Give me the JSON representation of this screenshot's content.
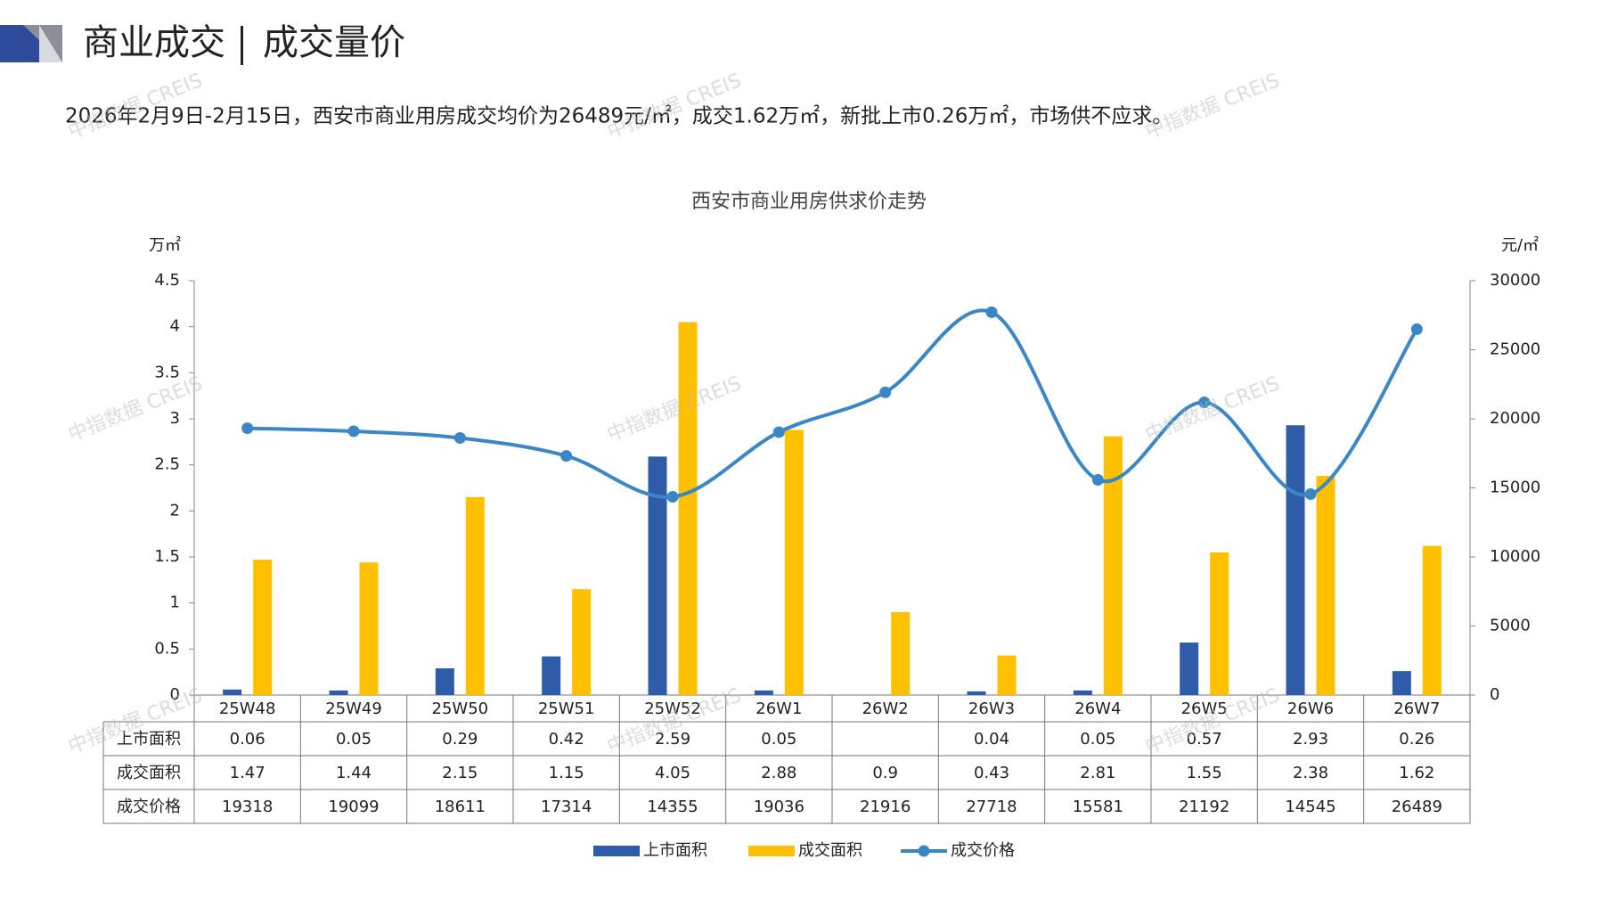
{
  "header": {
    "title": "商业成交",
    "subtitle": "成交量价"
  },
  "summary": "2026年2月9日-2月15日，西安市商业用房成交均价为26489元/㎡，成交1.62万㎡，新批上市0.26万㎡，市场供不应求。",
  "watermark": "中指数据 CREIS",
  "chart_data": {
    "type": "bar-line",
    "title": "西安市商业用房供求价走势",
    "y_label": "万㎡",
    "y2_label": "元/㎡",
    "categories": [
      "25W48",
      "25W49",
      "25W50",
      "25W51",
      "25W52",
      "26W1",
      "26W2",
      "26W3",
      "26W4",
      "26W5",
      "26W6",
      "26W7"
    ],
    "series": [
      {
        "name": "上市面积",
        "type": "bar",
        "color": "#2e5ca8",
        "values": [
          0.06,
          0.05,
          0.29,
          0.42,
          2.59,
          0.05,
          null,
          0.04,
          0.05,
          0.57,
          2.93,
          0.26
        ]
      },
      {
        "name": "成交面积",
        "type": "bar",
        "color": "#ffc000",
        "values": [
          1.47,
          1.44,
          2.15,
          1.15,
          4.05,
          2.88,
          0.9,
          0.43,
          2.81,
          1.55,
          2.38,
          1.62
        ]
      },
      {
        "name": "成交价格",
        "type": "line",
        "axis": "y2",
        "color": "#3b86c6",
        "values": [
          19318,
          19099,
          18611,
          17314,
          14355,
          19036,
          21916,
          27718,
          15581,
          21192,
          14545,
          26489
        ]
      }
    ],
    "ylim": [
      0,
      4.5
    ],
    "yticks": [
      0,
      0.5,
      1,
      1.5,
      2,
      2.5,
      3,
      3.5,
      4,
      4.5
    ],
    "y2lim": [
      0,
      30000
    ],
    "y2ticks": [
      0,
      5000,
      10000,
      15000,
      20000,
      25000,
      30000
    ],
    "grid": false,
    "legend": "bottom",
    "data_table": true
  }
}
